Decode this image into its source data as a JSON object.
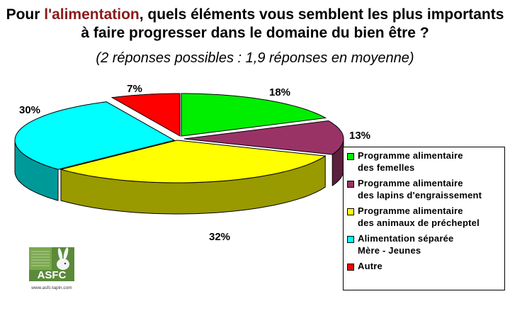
{
  "title": {
    "before": "Pour ",
    "highlight": "l'alimentation",
    "after": ", quels éléments vous semblent les plus importants à faire progresser dans le domaine du bien être ?"
  },
  "subtitle": "(2 réponses possibles : 1,9 réponses en moyenne)",
  "colors": {
    "title_highlight": "#8b1a1a"
  },
  "chart_data": {
    "type": "pie",
    "style": "3d-exploded",
    "slices": [
      {
        "label": "Programme alimentaire\ndes femelles",
        "value": 18,
        "value_label": "18%",
        "color": "#00ee00"
      },
      {
        "label": "Programme alimentaire\ndes lapins d'engraissement",
        "value": 13,
        "value_label": "13%",
        "color": "#993366"
      },
      {
        "label": "Programme alimentaire\ndes animaux de précheptel",
        "value": 32,
        "value_label": "32%",
        "color": "#ffff00"
      },
      {
        "label": "Alimentation séparée\nMère - Jeunes",
        "value": 30,
        "value_label": "30%",
        "color": "#00ffff"
      },
      {
        "label": "Autre",
        "value": 7,
        "value_label": "7%",
        "color": "#ff0000"
      }
    ],
    "legend_position": "right"
  },
  "logo": {
    "text": "ASFC",
    "url": "www.asfc-lapin.com",
    "icon": "rabbit-icon"
  }
}
